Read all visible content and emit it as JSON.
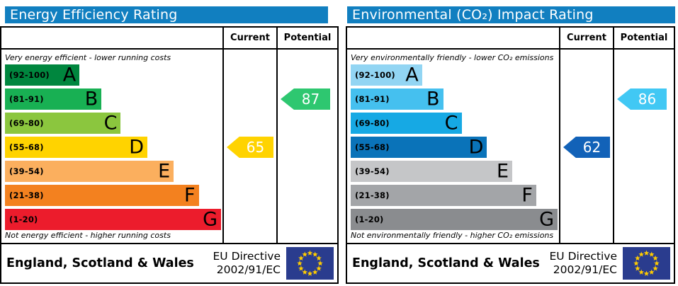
{
  "colors": {
    "title_bg": "#117fc0",
    "border": "#000000",
    "flag_bg": "#2a3c8e",
    "flag_star": "#ffcc00"
  },
  "left_panel": {
    "title": "Energy Efficiency Rating",
    "columns": {
      "current": "Current",
      "potential": "Potential"
    },
    "top_note": "Very energy efficient - lower running costs",
    "bottom_note": "Not energy efficient - higher running costs",
    "bands": [
      {
        "letter": "A",
        "range": "(92-100)",
        "color": "#00863e",
        "width_pct": 34.5
      },
      {
        "letter": "B",
        "range": "(81-91)",
        "color": "#18b053",
        "width_pct": 44.7
      },
      {
        "letter": "C",
        "range": "(69-80)",
        "color": "#8bc63e",
        "width_pct": 53.6
      },
      {
        "letter": "D",
        "range": "(55-68)",
        "color": "#ffd300",
        "width_pct": 65.9
      },
      {
        "letter": "E",
        "range": "(39-54)",
        "color": "#fbaf5e",
        "width_pct": 78.1
      },
      {
        "letter": "F",
        "range": "(21-38)",
        "color": "#f3811f",
        "width_pct": 89.7
      },
      {
        "letter": "G",
        "range": "(1-20)",
        "color": "#ec1c2c",
        "width_pct": 100
      }
    ],
    "current": {
      "value": "65",
      "band": "D",
      "color": "#ffd300"
    },
    "potential": {
      "value": "87",
      "band": "B",
      "color": "#2ec770"
    },
    "footer": {
      "region": "England, Scotland & Wales",
      "directive_line1": "EU Directive",
      "directive_line2": "2002/91/EC"
    }
  },
  "right_panel": {
    "title": "Environmental (CO₂) Impact Rating",
    "columns": {
      "current": "Current",
      "potential": "Potential"
    },
    "top_note": "Very environmentally friendly - lower CO₂ emissions",
    "bottom_note": "Not environmentally friendly - higher CO₂ emissions",
    "bands": [
      {
        "letter": "A",
        "range": "(92-100)",
        "color": "#92d5f3",
        "width_pct": 34.5
      },
      {
        "letter": "B",
        "range": "(81-91)",
        "color": "#45c0ef",
        "width_pct": 44.7
      },
      {
        "letter": "C",
        "range": "(69-80)",
        "color": "#16a9e4",
        "width_pct": 53.6
      },
      {
        "letter": "D",
        "range": "(55-68)",
        "color": "#0a73b9",
        "width_pct": 65.9
      },
      {
        "letter": "E",
        "range": "(39-54)",
        "color": "#c5c6c8",
        "width_pct": 78.1
      },
      {
        "letter": "F",
        "range": "(21-38)",
        "color": "#a3a5a8",
        "width_pct": 89.7
      },
      {
        "letter": "G",
        "range": "(1-20)",
        "color": "#8a8c8f",
        "width_pct": 100
      }
    ],
    "current": {
      "value": "62",
      "band": "D",
      "color": "#1262b8"
    },
    "potential": {
      "value": "86",
      "band": "B",
      "color": "#41c8f4"
    },
    "footer": {
      "region": "England, Scotland & Wales",
      "directive_line1": "EU Directive",
      "directive_line2": "2002/91/EC"
    }
  },
  "chart_data": [
    {
      "type": "bar",
      "title": "Energy Efficiency Rating",
      "categories": [
        "A (92-100)",
        "B (81-91)",
        "C (69-80)",
        "D (55-68)",
        "E (39-54)",
        "F (21-38)",
        "G (1-20)"
      ],
      "values": [
        34.5,
        44.7,
        53.6,
        65.9,
        78.1,
        89.7,
        100
      ],
      "value_meaning": "relative band bar width percent",
      "current_rating": 65,
      "current_band": "D",
      "potential_rating": 87,
      "potential_band": "B",
      "xlabel": "",
      "ylabel": "",
      "legend": [
        "Current",
        "Potential"
      ],
      "annotations": [
        "Very energy efficient - lower running costs",
        "Not energy efficient - higher running costs",
        "England, Scotland & Wales",
        "EU Directive 2002/91/EC"
      ]
    },
    {
      "type": "bar",
      "title": "Environmental (CO₂) Impact Rating",
      "categories": [
        "A (92-100)",
        "B (81-91)",
        "C (69-80)",
        "D (55-68)",
        "E (39-54)",
        "F (21-38)",
        "G (1-20)"
      ],
      "values": [
        34.5,
        44.7,
        53.6,
        65.9,
        78.1,
        89.7,
        100
      ],
      "value_meaning": "relative band bar width percent",
      "current_rating": 62,
      "current_band": "D",
      "potential_rating": 86,
      "potential_band": "B",
      "xlabel": "",
      "ylabel": "",
      "legend": [
        "Current",
        "Potential"
      ],
      "annotations": [
        "Very environmentally friendly - lower CO₂ emissions",
        "Not environmentally friendly - higher CO₂ emissions",
        "England, Scotland & Wales",
        "EU Directive 2002/91/EC"
      ]
    }
  ]
}
